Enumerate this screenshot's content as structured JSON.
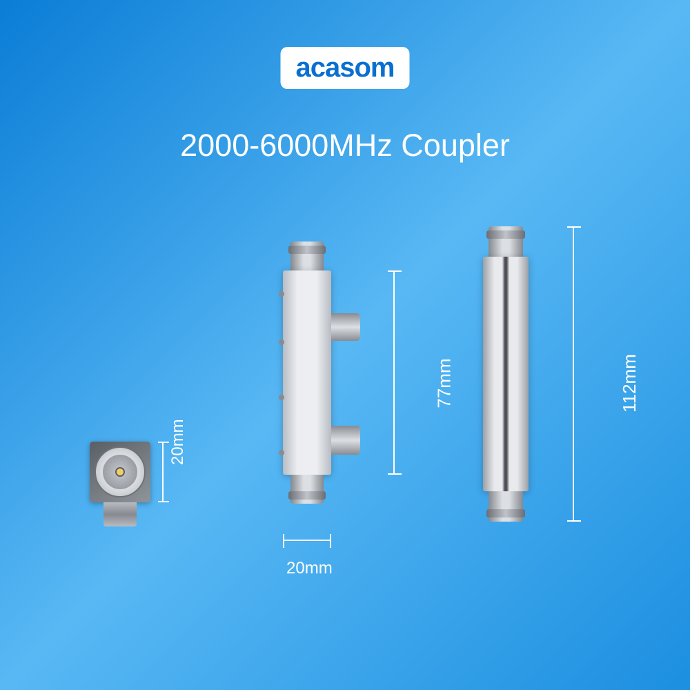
{
  "brand": "acasom",
  "title": "2000-6000MHz Coupler",
  "colors": {
    "bg_gradient_start": "#0b7dd6",
    "bg_gradient_mid": "#58b8f4",
    "bg_gradient_end": "#1c8fe0",
    "logo_bg": "#ffffff",
    "logo_text": "#0a6fd0",
    "text": "#ffffff",
    "dim_line": "#ffffff",
    "metal_light": "#eceef1",
    "metal_dark": "#85898f",
    "pin": "#f0d060"
  },
  "typography": {
    "logo_fontsize": 40,
    "title_fontsize": 45,
    "dim_fontsize": 24
  },
  "dimensions": {
    "top_height": "20mm",
    "body_height": "77mm",
    "overall_height": "112mm",
    "body_width": "20mm"
  },
  "components": {
    "top_view": {
      "label": "connector-top-view",
      "width_mm": 20,
      "height_mm": 20
    },
    "front_view": {
      "label": "coupler-front-view",
      "body_mm": 77,
      "width_mm": 20,
      "screws": 4,
      "side_ports": 2
    },
    "side_view": {
      "label": "coupler-side-view",
      "overall_mm": 112
    }
  }
}
